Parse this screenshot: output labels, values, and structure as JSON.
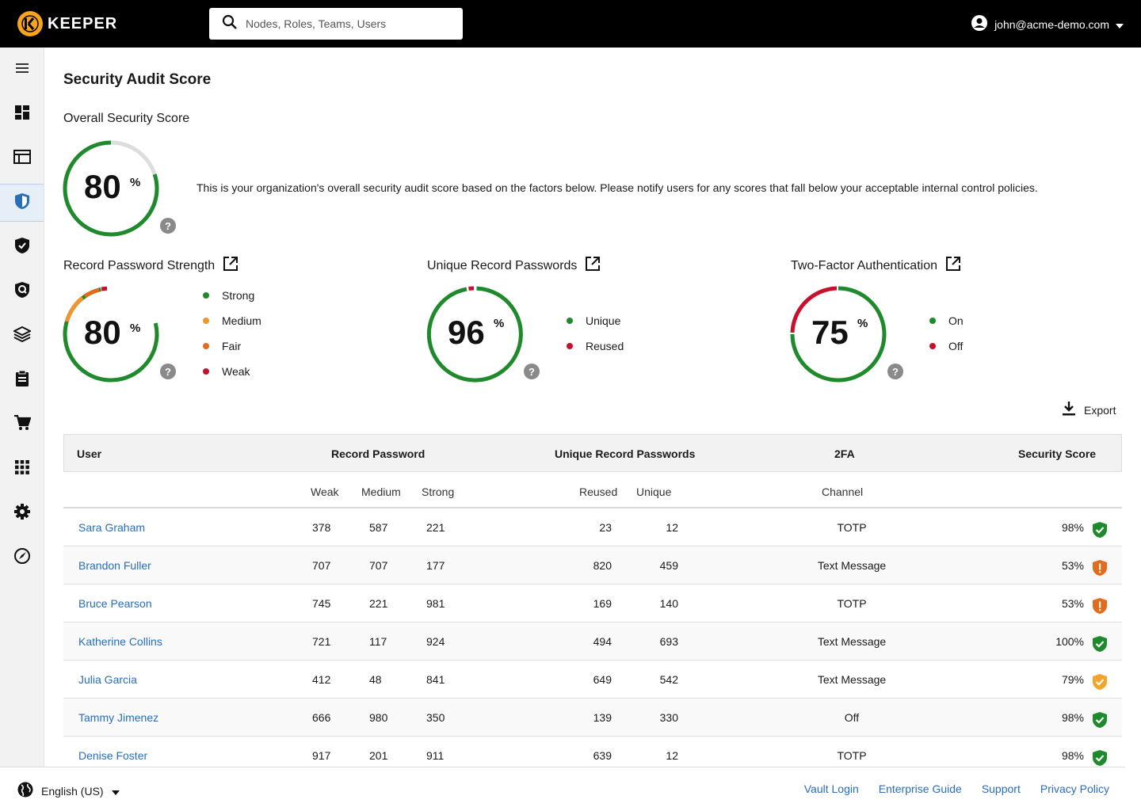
{
  "header": {
    "brand": "KEEPER",
    "search_placeholder": "Nodes, Roles, Teams, Users",
    "user_email": "john@acme-demo.com"
  },
  "sidebar": {
    "items": [
      {
        "icon": "menu-icon"
      },
      {
        "icon": "dashboard-icon"
      },
      {
        "icon": "admin-console-icon"
      },
      {
        "icon": "security-audit-icon",
        "active": true
      },
      {
        "icon": "breachwatch-icon"
      },
      {
        "icon": "compliance-shield-icon"
      },
      {
        "icon": "layers-icon"
      },
      {
        "icon": "reports-clipboard-icon"
      },
      {
        "icon": "cart-icon"
      },
      {
        "icon": "apps-grid-icon"
      },
      {
        "icon": "settings-gear-icon"
      },
      {
        "icon": "onboarding-rocket-icon"
      }
    ]
  },
  "page": {
    "title": "Security Audit Score",
    "overall": {
      "title": "Overall Security Score",
      "score": "80",
      "score_fraction": 0.8,
      "pct_symbol": "%",
      "description": "This is your organization's overall security audit score based on the factors below. Please notify users for any scores that fall below your acceptable internal control policies."
    },
    "cards": [
      {
        "title": "Record Password Strength",
        "score": "80",
        "pct_symbol": "%",
        "legend": [
          {
            "label": "Strong",
            "color": "#1f8a2c"
          },
          {
            "label": "Medium",
            "color": "#f3952b"
          },
          {
            "label": "Fair",
            "color": "#e36b1c"
          },
          {
            "label": "Weak",
            "color": "#c8102e"
          }
        ]
      },
      {
        "title": "Unique Record Passwords",
        "score": "96",
        "pct_symbol": "%",
        "legend": [
          {
            "label": "Unique",
            "color": "#1f8a2c"
          },
          {
            "label": "Reused",
            "color": "#c8102e"
          }
        ]
      },
      {
        "title": "Two-Factor Authentication",
        "score": "75",
        "pct_symbol": "%",
        "legend": [
          {
            "label": "On",
            "color": "#1f8a2c"
          },
          {
            "label": "Off",
            "color": "#c8102e"
          }
        ]
      }
    ],
    "export_label": "Export"
  },
  "table": {
    "groups": {
      "user": "User",
      "record_password": "Record Password",
      "unique": "Unique Record Passwords",
      "twofa": "2FA",
      "score": "Security Score"
    },
    "sub": {
      "weak": "Weak",
      "medium": "Medium",
      "strong": "Strong",
      "reused": "Reused",
      "unique": "Unique",
      "channel": "Channel"
    },
    "rows": [
      {
        "name": "Sara Graham",
        "weak": "378",
        "medium": "587",
        "strong": "221",
        "reused": "23",
        "unique": "12",
        "channel": "TOTP",
        "score": "98%",
        "status": "good"
      },
      {
        "name": "Brandon Fuller",
        "weak": "707",
        "medium": "707",
        "strong": "177",
        "reused": "820",
        "unique": "459",
        "channel": "Text Message",
        "score": "53%",
        "status": "bad"
      },
      {
        "name": "Bruce Pearson",
        "weak": "745",
        "medium": "221",
        "strong": "981",
        "reused": "169",
        "unique": "140",
        "channel": "TOTP",
        "score": "53%",
        "status": "bad"
      },
      {
        "name": "Katherine Collins",
        "weak": "721",
        "medium": "117",
        "strong": "924",
        "reused": "494",
        "unique": "693",
        "channel": "Text Message",
        "score": "100%",
        "status": "good"
      },
      {
        "name": "Julia Garcia",
        "weak": "412",
        "medium": "48",
        "strong": "841",
        "reused": "649",
        "unique": "542",
        "channel": "Text Message",
        "score": "79%",
        "status": "fair"
      },
      {
        "name": "Tammy Jimenez",
        "weak": "666",
        "medium": "980",
        "strong": "350",
        "reused": "139",
        "unique": "330",
        "channel": "Off",
        "score": "98%",
        "status": "good"
      },
      {
        "name": "Denise Foster",
        "weak": "917",
        "medium": "201",
        "strong": "911",
        "reused": "639",
        "unique": "12",
        "channel": "TOTP",
        "score": "98%",
        "status": "good"
      }
    ]
  },
  "footer": {
    "language": "English (US)",
    "links": [
      "Vault Login",
      "Enterprise Guide",
      "Support",
      "Privacy Policy"
    ]
  }
}
